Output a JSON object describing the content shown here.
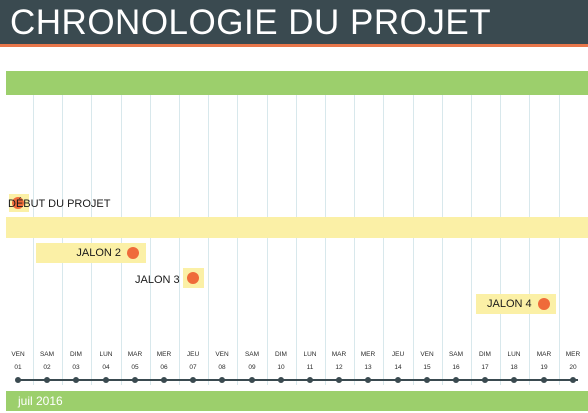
{
  "title": "CHRONOLOGIE DU PROJET",
  "colors": {
    "header_bg": "#3a4a50",
    "header_accent": "#e8764a",
    "band_green": "#9ccf6c",
    "band_yellow": "#fbf0a6",
    "milestone_dot": "#ef6b3a"
  },
  "milestones": [
    {
      "label": "DÉBUT DU PROJET",
      "day": "01"
    },
    {
      "label": "JALON 2",
      "day": "05"
    },
    {
      "label": "JALON 3",
      "day": "07"
    },
    {
      "label": "JALON 4",
      "day": "19"
    }
  ],
  "days": [
    {
      "dow": "VEN",
      "num": "01"
    },
    {
      "dow": "SAM",
      "num": "02"
    },
    {
      "dow": "DIM",
      "num": "03"
    },
    {
      "dow": "LUN",
      "num": "04"
    },
    {
      "dow": "MAR",
      "num": "05"
    },
    {
      "dow": "MER",
      "num": "06"
    },
    {
      "dow": "JEU",
      "num": "07"
    },
    {
      "dow": "VEN",
      "num": "08"
    },
    {
      "dow": "SAM",
      "num": "09"
    },
    {
      "dow": "DIM",
      "num": "10"
    },
    {
      "dow": "LUN",
      "num": "11"
    },
    {
      "dow": "MAR",
      "num": "12"
    },
    {
      "dow": "MER",
      "num": "13"
    },
    {
      "dow": "JEU",
      "num": "14"
    },
    {
      "dow": "VEN",
      "num": "15"
    },
    {
      "dow": "SAM",
      "num": "16"
    },
    {
      "dow": "DIM",
      "num": "17"
    },
    {
      "dow": "LUN",
      "num": "18"
    },
    {
      "dow": "MAR",
      "num": "19"
    },
    {
      "dow": "MER",
      "num": "20"
    }
  ],
  "month_label": "juil 2016"
}
